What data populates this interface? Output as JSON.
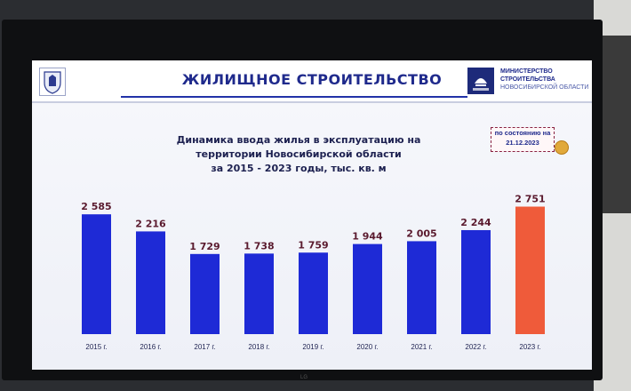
{
  "header": {
    "title": "ЖИЛИЩНОЕ СТРОИТЕЛЬСТВО",
    "ministry_line1": "МИНИСТЕРСТВО",
    "ministry_line2": "СТРОИТЕЛЬСТВА",
    "ministry_line3": "НОВОСИБИРСКОЙ ОБЛАСТИ"
  },
  "status_note": {
    "line1": "по состоянию на",
    "line2": "21.12.2023"
  },
  "tv_brand": "LG",
  "colors": {
    "bar_primary": "#1e2ad6",
    "bar_highlight": "#ef5b3a",
    "title_blue": "#1f2a8c",
    "value_label": "#5a1a2e"
  },
  "chart_data": {
    "type": "bar",
    "title_lines": [
      "Динамика ввода жилья в эксплуатацию на",
      "территории Новосибирской области",
      "за 2015 - 2023 годы, тыс. кв. м"
    ],
    "categories": [
      "2015 г.",
      "2016 г.",
      "2017 г.",
      "2018 г.",
      "2019 г.",
      "2020 г.",
      "2021 г.",
      "2022 г.",
      "2023 г."
    ],
    "values": [
      2585,
      2216,
      1729,
      1738,
      1759,
      1944,
      2005,
      2244,
      2751
    ],
    "value_labels": [
      "2 585",
      "2 216",
      "1 729",
      "1 738",
      "1 759",
      "1 944",
      "2 005",
      "2 244",
      "2 751"
    ],
    "highlight_index": 8,
    "ylim": [
      0,
      3000
    ],
    "xlabel": "",
    "ylabel": "",
    "grid": false,
    "legend": "none"
  }
}
